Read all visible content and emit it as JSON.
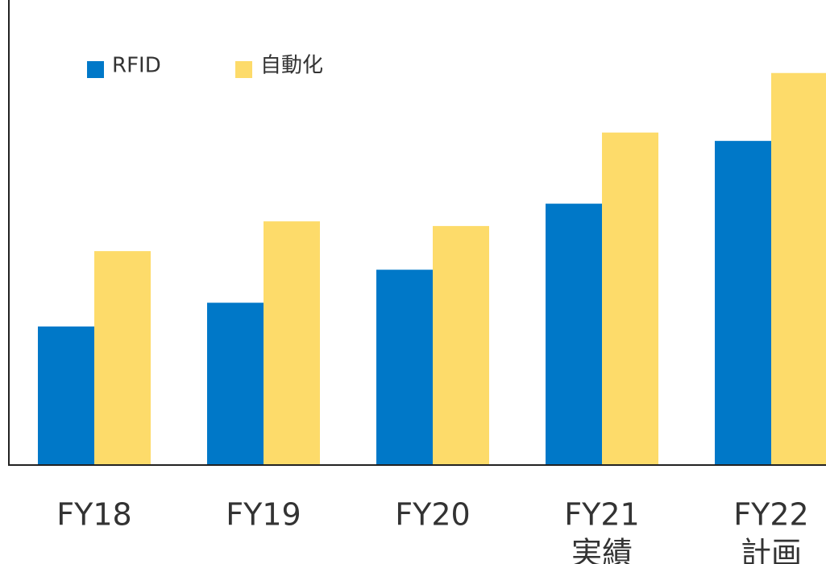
{
  "chart_data": {
    "type": "bar",
    "categories": [
      [
        "FY18"
      ],
      [
        "FY19"
      ],
      [
        "FY20"
      ],
      [
        "FY21",
        "実績"
      ],
      [
        "FY22",
        "計画"
      ]
    ],
    "series": [
      {
        "name": "RFID",
        "color": "#0078c8",
        "values": [
          29.8,
          34.9,
          42.0,
          56.2,
          69.7
        ]
      },
      {
        "name": "自動化",
        "color": "#fddb6a",
        "values": [
          46.0,
          52.4,
          51.4,
          71.5,
          84.3
        ]
      }
    ],
    "ylim": [
      0,
      100
    ]
  }
}
